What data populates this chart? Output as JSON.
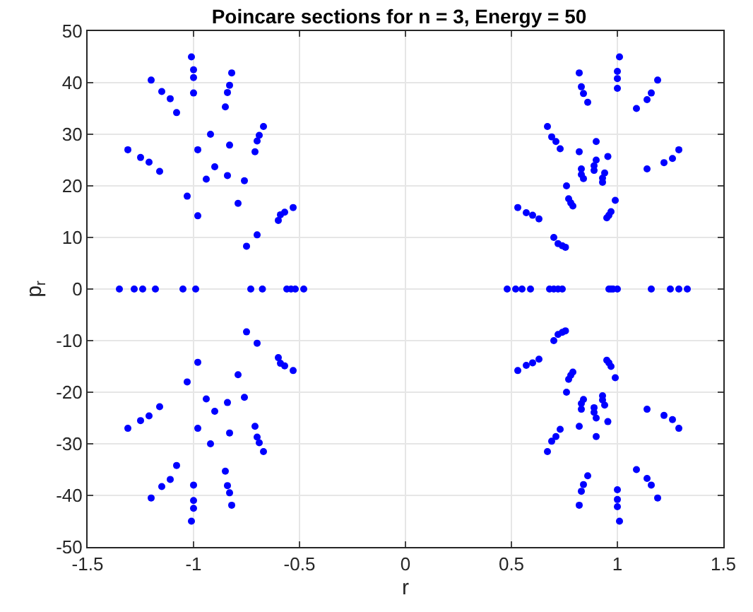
{
  "chart_data": {
    "type": "scatter",
    "title": "Poincare sections for n = 3, Energy = 50",
    "xlabel": "r",
    "ylabel": "p$_{r}$",
    "xlim": [
      -1.5,
      1.5
    ],
    "xticks": [
      -1.5,
      -1,
      -0.5,
      0,
      0.5,
      1,
      1.5
    ],
    "ylim": [
      -50,
      50
    ],
    "yticks": [
      -50,
      -40,
      -30,
      -20,
      -10,
      0,
      10,
      20,
      30,
      40,
      50
    ],
    "grid": true,
    "marker": "circle",
    "series": [
      {
        "color": "#0000ff",
        "x": [
          -1.01,
          -0.82,
          -0.67,
          -0.53,
          -0.48,
          -0.53,
          -0.67,
          -0.82,
          -1.01,
          -1.2,
          -1.31,
          -1.35,
          -1.31,
          -1.2
        ],
        "values": [
          45,
          41.9,
          31.5,
          15.8,
          0,
          -15.8,
          -31.5,
          -41.9,
          -45,
          -40.5,
          -27,
          0,
          27,
          40.5
        ]
      },
      {
        "color": "#0000ff",
        "x": [
          -1.0,
          -0.83,
          -0.69,
          -0.57,
          -0.52,
          -0.57,
          -0.69,
          -0.83,
          -1.0,
          -1.15,
          -1.25,
          -1.28,
          -1.25,
          -1.15
        ],
        "values": [
          42.5,
          39.5,
          29.8,
          14.9,
          0,
          -14.9,
          -29.8,
          -39.5,
          -42.5,
          -38.3,
          -25.5,
          0,
          25.5,
          38.3
        ]
      },
      {
        "color": "#0000ff",
        "x": [
          -1.0,
          -0.84,
          -0.7,
          -0.59,
          -0.54,
          -0.59,
          -0.7,
          -0.84,
          -1.0,
          -1.11,
          -1.21,
          -1.24,
          -1.21,
          -1.11
        ],
        "values": [
          41,
          38.1,
          28.7,
          14.4,
          0,
          -14.4,
          -28.7,
          -38.1,
          -41,
          -36.9,
          -24.6,
          0,
          24.6,
          36.9
        ]
      },
      {
        "color": "#0000ff",
        "x": [
          -1.0,
          -0.85,
          -0.71,
          -0.6,
          -0.56,
          -0.6,
          -0.71,
          -0.85,
          -1.0,
          -1.08,
          -1.16,
          -1.18,
          -1.16,
          -1.08
        ],
        "values": [
          38,
          35.3,
          26.6,
          13.3,
          0,
          -13.3,
          -26.6,
          -35.3,
          -38,
          -34.2,
          -22.8,
          0,
          22.8,
          34.2
        ]
      },
      {
        "color": "#0000ff",
        "x": [
          -0.92,
          -0.83,
          -0.76,
          -0.7,
          -0.675,
          -0.7,
          -0.76,
          -0.83,
          -0.92,
          -0.98,
          -1.03,
          -1.05,
          -1.03,
          -0.98
        ],
        "values": [
          30,
          27.9,
          21,
          10.5,
          0,
          -10.5,
          -21,
          -27.9,
          -30,
          -27,
          -18,
          0,
          18,
          27
        ]
      },
      {
        "color": "#0000ff",
        "x": [
          -0.9,
          -0.84,
          -0.79,
          -0.75,
          -0.73,
          -0.75,
          -0.79,
          -0.84,
          -0.9,
          -0.94,
          -0.98,
          -0.99,
          -0.98,
          -0.94
        ],
        "values": [
          23.7,
          22,
          16.6,
          8.3,
          0,
          -8.3,
          -16.6,
          -22,
          -23.7,
          -21.3,
          -14.2,
          0,
          14.2,
          21.3
        ]
      },
      {
        "color": "#0000ff",
        "x": [
          1.01,
          1.19,
          1.29,
          1.33,
          1.29,
          1.19,
          1.01,
          0.82,
          0.67,
          0.53,
          0.48,
          0.53,
          0.67,
          0.82
        ],
        "values": [
          45,
          40.5,
          27,
          0,
          -27,
          -40.5,
          -45,
          -41.9,
          -31.5,
          -15.8,
          0,
          15.8,
          31.5,
          41.9
        ]
      },
      {
        "color": "#0000ff",
        "x": [
          1.0,
          1.16,
          1.26,
          1.29,
          1.26,
          1.16,
          1.0,
          0.83,
          0.69,
          0.57,
          0.52,
          0.57,
          0.69,
          0.83
        ],
        "values": [
          42.2,
          38,
          25.3,
          0,
          -25.3,
          -38,
          -42.2,
          -39.2,
          -29.5,
          -14.8,
          0,
          14.8,
          29.5,
          39.2
        ]
      },
      {
        "color": "#0000ff",
        "x": [
          1.0,
          1.14,
          1.22,
          1.25,
          1.22,
          1.14,
          1.0,
          0.84,
          0.71,
          0.6,
          0.55,
          0.6,
          0.71,
          0.84
        ],
        "values": [
          40.8,
          36.7,
          24.5,
          0,
          -24.5,
          -36.7,
          -40.8,
          -37.9,
          -28.6,
          -14.3,
          0,
          14.3,
          28.6,
          37.9
        ]
      },
      {
        "color": "#0000ff",
        "x": [
          1.0,
          1.09,
          1.14,
          1.16,
          1.14,
          1.09,
          1.0,
          0.86,
          0.73,
          0.63,
          0.59,
          0.63,
          0.73,
          0.86
        ],
        "values": [
          38.9,
          35,
          23.3,
          0,
          -23.3,
          -35,
          -38.9,
          -36.2,
          -27.2,
          -13.6,
          0,
          13.6,
          27.2,
          36.2
        ]
      },
      {
        "color": "#0000ff",
        "x": [
          0.9,
          0.955,
          0.99,
          1.0,
          0.99,
          0.955,
          0.9,
          0.82,
          0.76,
          0.7,
          0.68,
          0.7,
          0.76,
          0.82
        ],
        "values": [
          28.6,
          25.7,
          17.2,
          0,
          -17.2,
          -25.7,
          -28.6,
          -26.6,
          -20,
          -10,
          0,
          10,
          20,
          26.6
        ]
      },
      {
        "color": "#0000ff",
        "x": [
          0.9,
          0.94,
          0.97,
          0.98,
          0.97,
          0.94,
          0.9,
          0.83,
          0.77,
          0.72,
          0.7,
          0.72,
          0.77,
          0.83
        ],
        "values": [
          25,
          22.5,
          15,
          0,
          -15,
          -22.5,
          -25,
          -23.3,
          -17.5,
          -8.8,
          0,
          8.8,
          17.5,
          23.3
        ]
      },
      {
        "color": "#0000ff",
        "x": [
          0.89,
          0.93,
          0.96,
          0.97,
          0.96,
          0.93,
          0.89,
          0.83,
          0.78,
          0.74,
          0.72,
          0.74,
          0.78,
          0.83
        ],
        "values": [
          23.9,
          21.5,
          14.3,
          0,
          -14.3,
          -21.5,
          -23.9,
          -22.2,
          -16.7,
          -8.4,
          0,
          8.4,
          16.7,
          22.2
        ]
      },
      {
        "color": "#0000ff",
        "x": [
          0.89,
          0.93,
          0.95,
          0.96,
          0.95,
          0.93,
          0.89,
          0.84,
          0.79,
          0.755,
          0.74,
          0.755,
          0.79,
          0.84
        ],
        "values": [
          23,
          20.7,
          13.8,
          0,
          -13.8,
          -20.7,
          -23,
          -21.4,
          -16.1,
          -8.1,
          0,
          8.1,
          16.1,
          21.4
        ]
      }
    ]
  }
}
